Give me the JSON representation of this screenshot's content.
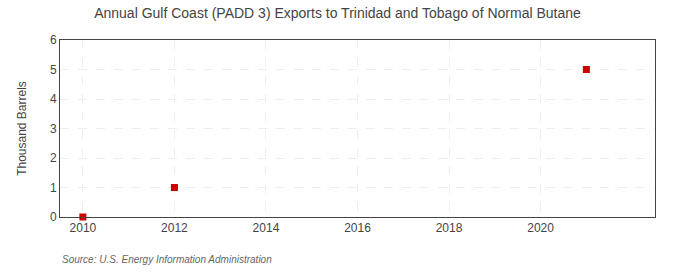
{
  "chart_data": {
    "type": "scatter",
    "title": "Annual Gulf Coast (PADD 3) Exports to Trinidad and Tobago of Normal Butane",
    "ylabel": "Thousand Barrels",
    "source": "Source: U.S. Energy Information Administration",
    "x": [
      2010,
      2012,
      2021
    ],
    "values": [
      0,
      1,
      5
    ],
    "color": "#cc0000",
    "marker": "square",
    "xlim": [
      2009.5,
      2022.5
    ],
    "ylim": [
      0,
      6
    ],
    "xticks": [
      2010,
      2012,
      2014,
      2016,
      2018,
      2020
    ],
    "yticks": [
      0,
      1,
      2,
      3,
      4,
      5,
      6
    ],
    "grid": true
  }
}
